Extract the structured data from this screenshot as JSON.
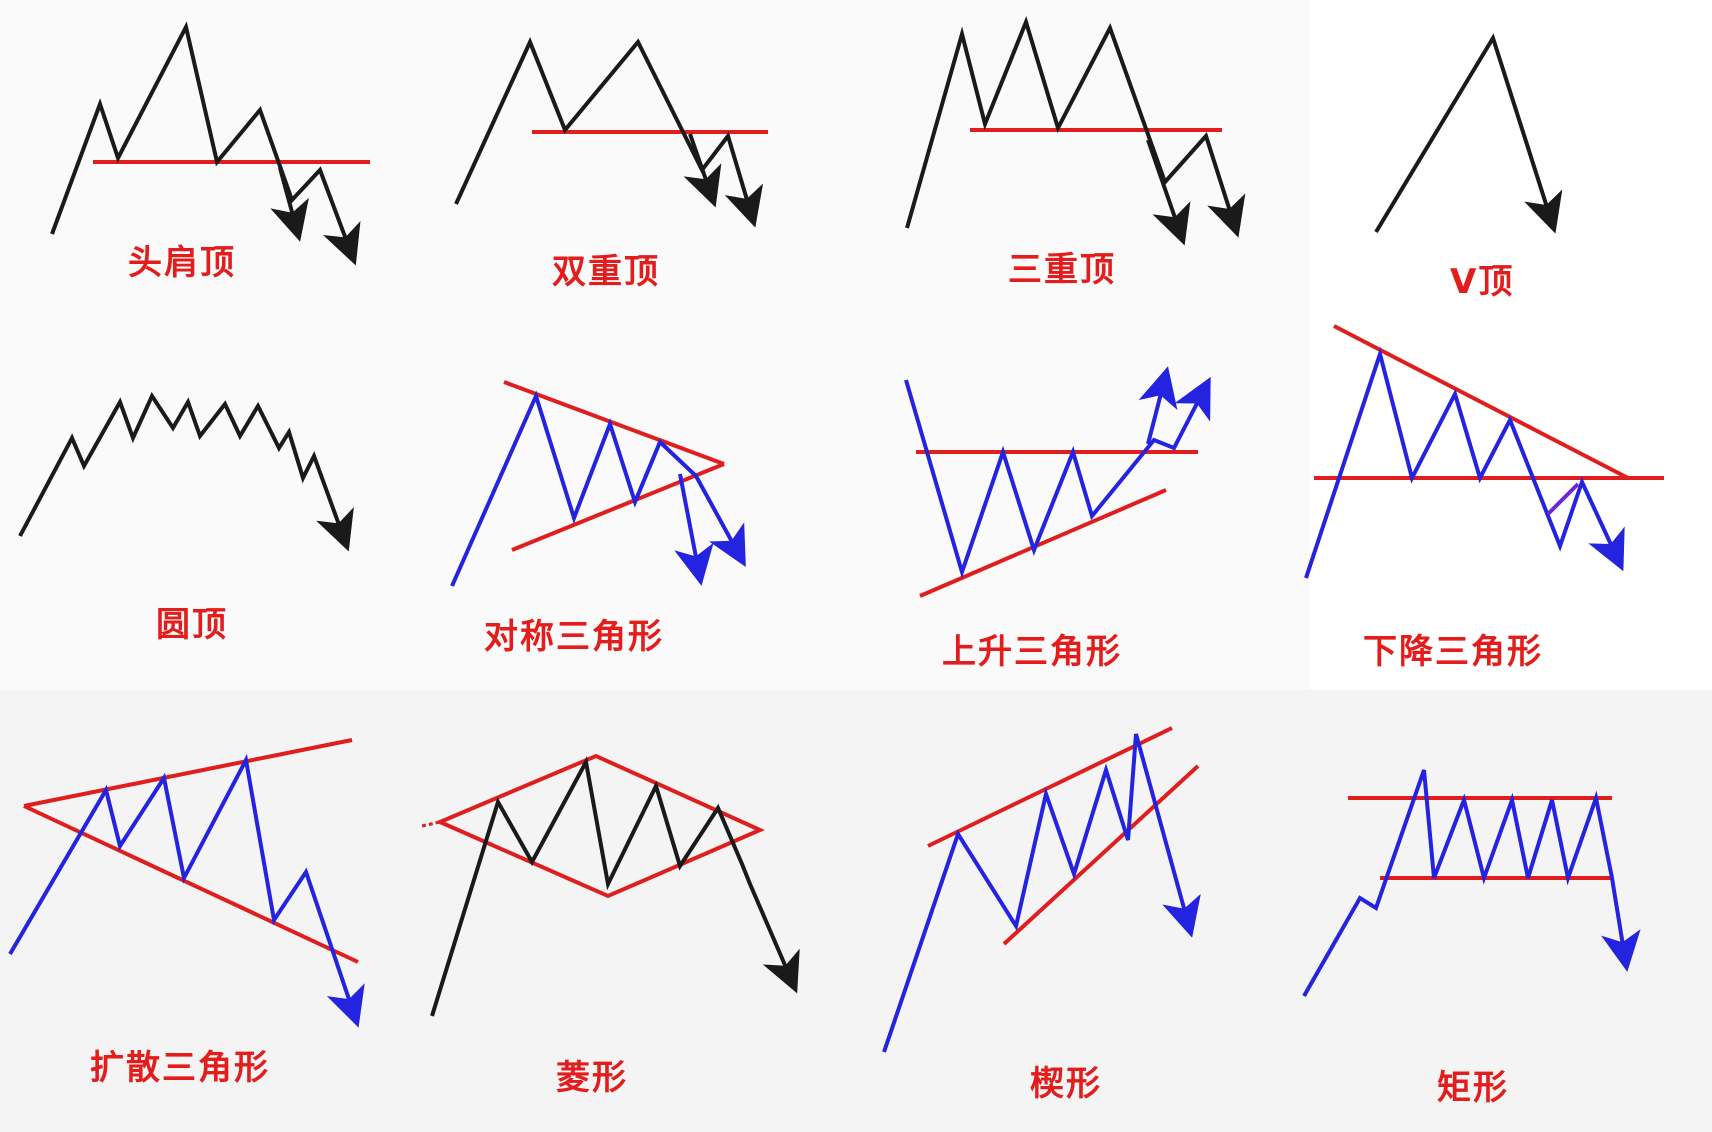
{
  "colors": {
    "price_line_black": "#1a1a1a",
    "price_line_blue": "#2323e0",
    "trendline_red": "#e01e1e",
    "label_red": "#e31c1c"
  },
  "patterns": [
    {
      "label": "头肩顶",
      "price_color": "black"
    },
    {
      "label": "双重顶",
      "price_color": "black"
    },
    {
      "label": "三重顶",
      "price_color": "black"
    },
    {
      "label": "V顶",
      "price_color": "black"
    },
    {
      "label": "圆顶",
      "price_color": "black"
    },
    {
      "label": "对称三角形",
      "price_color": "blue"
    },
    {
      "label": "上升三角形",
      "price_color": "blue"
    },
    {
      "label": "下降三角形",
      "price_color": "blue"
    },
    {
      "label": "扩散三角形",
      "price_color": "blue"
    },
    {
      "label": "菱形",
      "price_color": "black"
    },
    {
      "label": "楔形",
      "price_color": "blue"
    },
    {
      "label": "矩形",
      "price_color": "blue"
    }
  ]
}
